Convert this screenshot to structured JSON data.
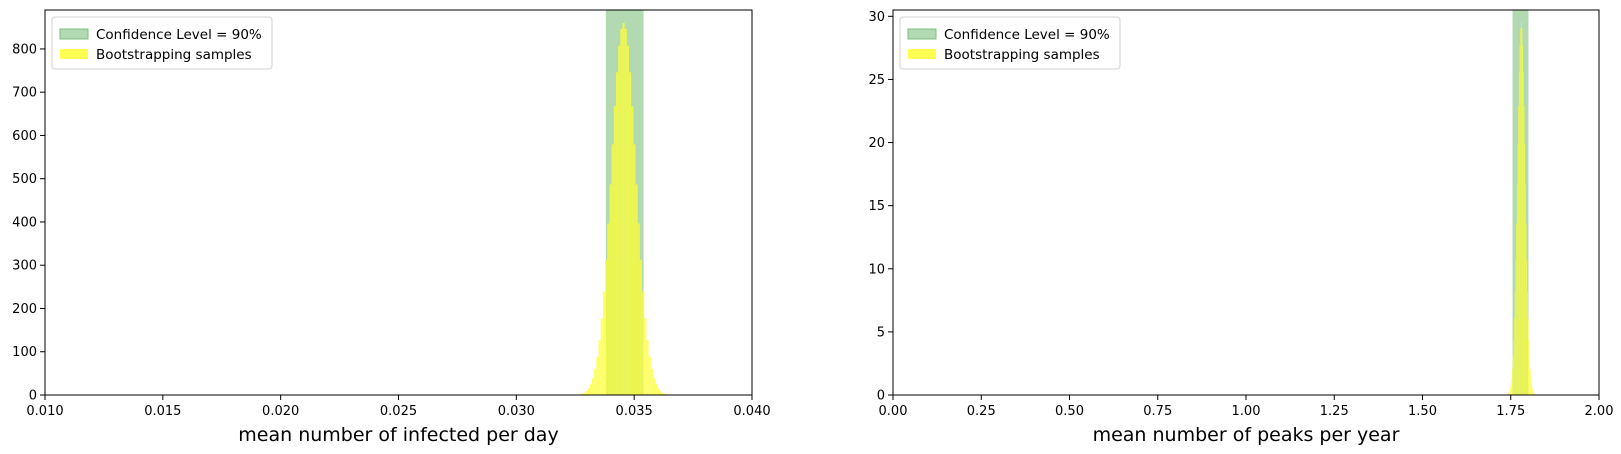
{
  "chart_data": [
    {
      "type": "histogram",
      "xlabel": "mean number of infected per day",
      "ylabel": "",
      "xlim": [
        0.01,
        0.04
      ],
      "ylim": [
        0,
        890
      ],
      "xticks": [
        "0.010",
        "0.015",
        "0.020",
        "0.025",
        "0.030",
        "0.035",
        "0.040"
      ],
      "yticks": [
        "0",
        "100",
        "200",
        "300",
        "400",
        "500",
        "600",
        "700",
        "800"
      ],
      "confidence_interval": [
        0.0338,
        0.0354
      ],
      "distribution": {
        "mean": 0.03455,
        "sd": 0.00052,
        "peak": 860
      },
      "legend": {
        "placement": "upper-left",
        "entries": [
          {
            "label": "Confidence Level = 90%",
            "color": "#7fbf7f"
          },
          {
            "label": "Bootstrapping samples",
            "color": "#ffff33"
          }
        ]
      }
    },
    {
      "type": "histogram",
      "xlabel": "mean number of peaks per year",
      "ylabel": "",
      "xlim": [
        0.0,
        2.0
      ],
      "ylim": [
        0,
        30.5
      ],
      "xticks": [
        "0.00",
        "0.25",
        "0.50",
        "0.75",
        "1.00",
        "1.25",
        "1.50",
        "1.75",
        "2.00"
      ],
      "yticks": [
        "0",
        "5",
        "10",
        "15",
        "20",
        "25",
        "30"
      ],
      "confidence_interval": [
        1.755,
        1.8
      ],
      "distribution": {
        "mean": 1.78,
        "sd": 0.011,
        "peak": 29.5
      },
      "legend": {
        "placement": "upper-left",
        "entries": [
          {
            "label": "Confidence Level = 90%",
            "color": "#7fbf7f"
          },
          {
            "label": "Bootstrapping samples",
            "color": "#ffff33"
          }
        ]
      }
    }
  ]
}
